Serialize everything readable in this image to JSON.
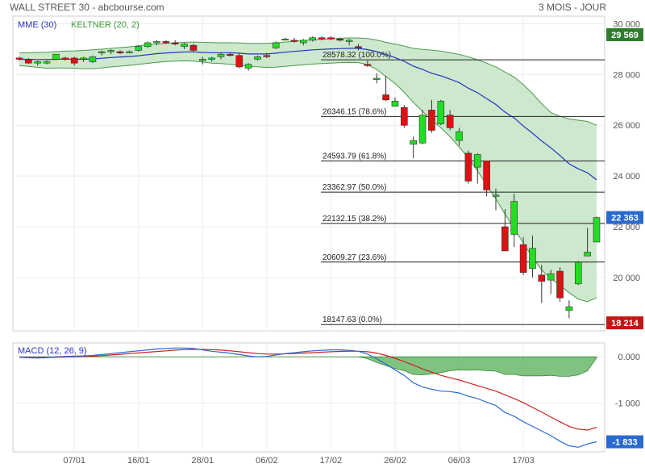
{
  "header": {
    "title_left": "WALL STREET 30 - abcbourse.com",
    "title_right": "3 MOIS - JOUR"
  },
  "colors": {
    "up": "#22dd22",
    "down": "#dd1111",
    "mme": "#2233bb",
    "keltner_fill": "#cde8cd",
    "keltner_line": "#4a9a4a",
    "macd": "#2a6ad0",
    "signal": "#cc2222",
    "hist": "#6ab86a",
    "tag_green": "#2e7d2e",
    "tag_blue": "#2a6ad0",
    "tag_red": "#c81414",
    "tag_dark": "#222222"
  },
  "chart_data": [
    {
      "type": "candlestick",
      "legend": [
        "MME (30)",
        "KELTNER (20, 2)"
      ],
      "ylim": [
        17900,
        30300
      ],
      "y_ticks": [
        20000,
        22000,
        24000,
        26000,
        28000,
        30000
      ],
      "y_tick_labels": [
        "20 000",
        "22 000",
        "24 000",
        "26 000",
        "28 000",
        "30 000"
      ],
      "x_ticks": [
        {
          "label": "07/01",
          "index": 6
        },
        {
          "label": "16/01",
          "index": 13
        },
        {
          "label": "28/01",
          "index": 20
        },
        {
          "label": "06/02",
          "index": 27
        },
        {
          "label": "17/02",
          "index": 34
        },
        {
          "label": "26/02",
          "index": 41
        },
        {
          "label": "06/03",
          "index": 48
        },
        {
          "label": "17/03",
          "index": 55
        }
      ],
      "candles": [
        [
          28650,
          28700,
          28550,
          28600
        ],
        [
          28600,
          28650,
          28420,
          28450
        ],
        [
          28450,
          28550,
          28350,
          28500
        ],
        [
          28450,
          28550,
          28400,
          28500
        ],
        [
          28600,
          28800,
          28550,
          28800
        ],
        [
          28650,
          28700,
          28550,
          28600
        ],
        [
          28650,
          28700,
          28350,
          28450
        ],
        [
          28600,
          28700,
          28500,
          28650
        ],
        [
          28500,
          28750,
          28450,
          28700
        ],
        [
          28850,
          28950,
          28750,
          28900
        ],
        [
          28900,
          29000,
          28800,
          28950
        ],
        [
          28900,
          28950,
          28800,
          28850
        ],
        [
          28900,
          28950,
          28850,
          28900
        ],
        [
          28950,
          29150,
          28900,
          29100
        ],
        [
          29100,
          29300,
          29050,
          29250
        ],
        [
          29250,
          29350,
          29150,
          29300
        ],
        [
          29300,
          29350,
          29200,
          29250
        ],
        [
          29250,
          29350,
          29150,
          29200
        ],
        [
          29100,
          29250,
          29000,
          29200
        ],
        [
          29150,
          29200,
          28900,
          28950
        ],
        [
          28550,
          28700,
          28400,
          28600
        ],
        [
          28600,
          28700,
          28500,
          28650
        ],
        [
          28700,
          28850,
          28600,
          28800
        ],
        [
          28800,
          28850,
          28700,
          28750
        ],
        [
          28750,
          28850,
          28250,
          28300
        ],
        [
          28250,
          28450,
          28150,
          28400
        ],
        [
          28600,
          28750,
          28550,
          28700
        ],
        [
          28750,
          28850,
          28650,
          28700
        ],
        [
          29050,
          29300,
          29000,
          29250
        ],
        [
          29400,
          29450,
          29350,
          29400
        ],
        [
          29350,
          29450,
          29250,
          29300
        ],
        [
          29250,
          29400,
          29150,
          29350
        ],
        [
          29350,
          29500,
          29300,
          29450
        ],
        [
          29450,
          29500,
          29350,
          29400
        ],
        [
          29450,
          29500,
          29350,
          29400
        ],
        [
          29400,
          29450,
          29300,
          29350
        ],
        [
          29300,
          29400,
          29150,
          29350
        ],
        [
          29100,
          29200,
          28950,
          29050
        ],
        [
          28400,
          28550,
          28300,
          28350
        ],
        [
          27850,
          28050,
          27650,
          27850
        ],
        [
          27200,
          27950,
          26950,
          27000
        ],
        [
          26750,
          27100,
          26800,
          26950
        ],
        [
          26700,
          26800,
          25900,
          26000
        ],
        [
          25250,
          25550,
          24700,
          25400
        ],
        [
          25300,
          26600,
          25250,
          26400
        ],
        [
          26600,
          27000,
          25700,
          25800
        ],
        [
          26050,
          27000,
          26000,
          26950
        ],
        [
          26400,
          26600,
          25800,
          25900
        ],
        [
          25400,
          25900,
          25200,
          25750
        ],
        [
          24900,
          25000,
          23700,
          23800
        ],
        [
          24350,
          24900,
          23700,
          24850
        ],
        [
          24600,
          24600,
          23200,
          23450
        ],
        [
          23200,
          23500,
          22650,
          23250
        ],
        [
          22000,
          22700,
          21050,
          21050
        ],
        [
          21700,
          23300,
          21200,
          23000
        ],
        [
          21300,
          21600,
          20100,
          20200
        ],
        [
          20350,
          21650,
          20000,
          21150
        ],
        [
          20100,
          20500,
          19000,
          19850
        ],
        [
          19900,
          20300,
          19350,
          20150
        ],
        [
          20250,
          20400,
          19050,
          19200
        ],
        [
          18700,
          19100,
          18400,
          18850
        ],
        [
          19750,
          20650,
          19700,
          20600
        ],
        [
          20850,
          21950,
          20850,
          21000
        ],
        [
          21400,
          22400,
          21400,
          22363
        ]
      ],
      "mme": [
        28600,
        28595,
        28590,
        28585,
        28600,
        28605,
        28600,
        28600,
        28610,
        28640,
        28670,
        28690,
        28710,
        28740,
        28780,
        28820,
        28850,
        28870,
        28890,
        28890,
        28870,
        28860,
        28860,
        28860,
        28840,
        28810,
        28810,
        28810,
        28840,
        28880,
        28910,
        28940,
        28970,
        28990,
        29010,
        29020,
        29030,
        29030,
        28980,
        28900,
        28780,
        28670,
        28520,
        28330,
        28200,
        28050,
        27950,
        27820,
        27680,
        27460,
        27280,
        27050,
        26820,
        26520,
        26290,
        25970,
        25690,
        25380,
        25110,
        24810,
        24480,
        24280,
        24130,
        23850
      ],
      "keltner_upper": [
        28850,
        28860,
        28870,
        28880,
        28900,
        28920,
        28930,
        28950,
        28970,
        29000,
        29030,
        29060,
        29090,
        29130,
        29170,
        29200,
        29230,
        29250,
        29270,
        29280,
        29270,
        29260,
        29250,
        29250,
        29240,
        29230,
        29230,
        29230,
        29250,
        29280,
        29310,
        29340,
        29370,
        29390,
        29410,
        29430,
        29440,
        29440,
        29420,
        29360,
        29270,
        29200,
        29120,
        29030,
        28990,
        28960,
        28920,
        28860,
        28790,
        28700,
        28580,
        28450,
        28300,
        28100,
        27900,
        27600,
        27250,
        26850,
        26500,
        26350,
        26250,
        26200,
        26150,
        26000
      ],
      "keltner_lower": [
        28350,
        28320,
        28280,
        28250,
        28260,
        28260,
        28250,
        28230,
        28230,
        28260,
        28300,
        28330,
        28360,
        28400,
        28440,
        28480,
        28510,
        28530,
        28540,
        28530,
        28490,
        28450,
        28430,
        28400,
        28370,
        28320,
        28300,
        28280,
        28290,
        28320,
        28350,
        28380,
        28410,
        28430,
        28450,
        28470,
        28480,
        28470,
        28390,
        28200,
        27920,
        27650,
        27300,
        26900,
        26550,
        26200,
        25900,
        25550,
        25150,
        24700,
        24200,
        23650,
        23100,
        22500,
        21950,
        21350,
        20800,
        20300,
        19950,
        19700,
        19400,
        19150,
        19050,
        19200
      ],
      "fibonacci": [
        {
          "label": "28578.32  (100.0%)",
          "value": 28578.32
        },
        {
          "label": "26346.15  (78.6%)",
          "value": 26346.15
        },
        {
          "label": "24593.79  (61.8%)",
          "value": 24593.79
        },
        {
          "label": "23362.97  (50.0%)",
          "value": 23362.97
        },
        {
          "label": "22132.15  (38.2%)",
          "value": 22132.15
        },
        {
          "label": "20609.27  (23.6%)",
          "value": 20609.27
        },
        {
          "label": "18147.63  (0.0%)",
          "value": 18147.63
        }
      ],
      "price_tags": [
        {
          "label": "29 569",
          "value": 29569,
          "color": "tag_green"
        },
        {
          "label": "22 363",
          "value": 22363,
          "color": "tag_blue"
        },
        {
          "label": "18 214",
          "value": 18214,
          "color": "tag_red"
        }
      ]
    },
    {
      "type": "macd",
      "legend": "MACD (12, 26, 9)",
      "ylim": [
        -2050,
        300
      ],
      "y_ticks": [
        0,
        -1000
      ],
      "y_tick_labels": [
        "0.000",
        "-1 000"
      ],
      "macd": [
        -10,
        -20,
        -25,
        -20,
        0,
        10,
        15,
        20,
        30,
        50,
        70,
        90,
        110,
        130,
        150,
        170,
        180,
        190,
        190,
        180,
        150,
        120,
        100,
        80,
        50,
        20,
        0,
        10,
        40,
        70,
        90,
        110,
        130,
        140,
        150,
        150,
        140,
        120,
        60,
        -40,
        -160,
        -280,
        -400,
        -560,
        -650,
        -700,
        -740,
        -750,
        -780,
        -850,
        -900,
        -980,
        -1050,
        -1200,
        -1280,
        -1400,
        -1500,
        -1600,
        -1700,
        -1820,
        -1920,
        -1950,
        -1880,
        -1833
      ],
      "signal": [
        -5,
        -10,
        -15,
        -15,
        -10,
        -5,
        0,
        5,
        15,
        25,
        40,
        55,
        70,
        85,
        100,
        115,
        130,
        145,
        155,
        160,
        160,
        155,
        145,
        130,
        110,
        90,
        70,
        60,
        60,
        65,
        70,
        80,
        90,
        100,
        110,
        118,
        122,
        120,
        110,
        80,
        30,
        -30,
        -100,
        -180,
        -260,
        -330,
        -400,
        -450,
        -500,
        -560,
        -620,
        -680,
        -740,
        -820,
        -900,
        -990,
        -1090,
        -1190,
        -1300,
        -1400,
        -1500,
        -1560,
        -1580,
        -1520
      ],
      "histogram": [
        0,
        0,
        0,
        0,
        0,
        0,
        0,
        0,
        0,
        0,
        0,
        0,
        0,
        0,
        0,
        0,
        0,
        0,
        0,
        0,
        0,
        0,
        0,
        0,
        0,
        0,
        0,
        0,
        0,
        0,
        0,
        0,
        0,
        0,
        0,
        0,
        0,
        0,
        -40,
        -120,
        -190,
        -250,
        -300,
        -380,
        -390,
        -370,
        -340,
        -300,
        -280,
        -290,
        -280,
        -300,
        -310,
        -380,
        -380,
        -410,
        -410,
        -410,
        -400,
        -420,
        -420,
        -390,
        -300,
        -20
      ],
      "price_tags": [
        {
          "label": "-1 833",
          "value": -1833,
          "color": "tag_blue"
        }
      ]
    }
  ]
}
